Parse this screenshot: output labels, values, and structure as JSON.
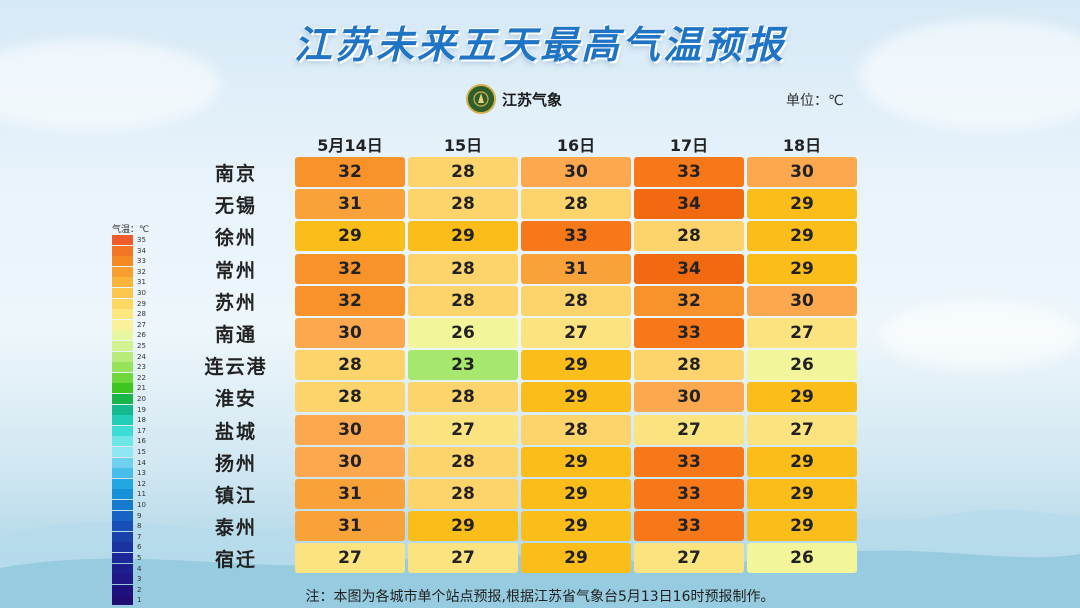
{
  "title": "江苏未来五天最高气温预报",
  "logo_text": "江苏气象",
  "unit": "单位：℃",
  "note": "注：本图为各城市单个站点预报,根据江苏省气象台5月13日16时预报制作。",
  "legend": {
    "title": "气温：℃",
    "items": [
      {
        "v": "35",
        "c": "#f05b2a"
      },
      {
        "v": "34",
        "c": "#f37524"
      },
      {
        "v": "33",
        "c": "#f58a23"
      },
      {
        "v": "32",
        "c": "#f7a030"
      },
      {
        "v": "31",
        "c": "#f9b43a"
      },
      {
        "v": "30",
        "c": "#fbc649"
      },
      {
        "v": "29",
        "c": "#fdd860"
      },
      {
        "v": "28",
        "c": "#fde57f"
      },
      {
        "v": "27",
        "c": "#fbf19a"
      },
      {
        "v": "26",
        "c": "#e9f6a0"
      },
      {
        "v": "25",
        "c": "#d3f291"
      },
      {
        "v": "24",
        "c": "#b8ec7a"
      },
      {
        "v": "23",
        "c": "#96e35c"
      },
      {
        "v": "22",
        "c": "#6fd73a"
      },
      {
        "v": "21",
        "c": "#3ec620"
      },
      {
        "v": "20",
        "c": "#17b54a"
      },
      {
        "v": "19",
        "c": "#14b98f"
      },
      {
        "v": "18",
        "c": "#1fcfb7"
      },
      {
        "v": "17",
        "c": "#3ddcd6"
      },
      {
        "v": "16",
        "c": "#6ee6e8"
      },
      {
        "v": "15",
        "c": "#8fe5f1"
      },
      {
        "v": "14",
        "c": "#6fd1ee"
      },
      {
        "v": "13",
        "c": "#47bde9"
      },
      {
        "v": "12",
        "c": "#23a7e2"
      },
      {
        "v": "11",
        "c": "#1690d8"
      },
      {
        "v": "10",
        "c": "#1579cd"
      },
      {
        "v": "9",
        "c": "#1663c3"
      },
      {
        "v": "8",
        "c": "#174eb7"
      },
      {
        "v": "7",
        "c": "#1940ab"
      },
      {
        "v": "6",
        "c": "#1b33a1"
      },
      {
        "v": "5",
        "c": "#1d2898"
      },
      {
        "v": "4",
        "c": "#1e1f8f"
      },
      {
        "v": "3",
        "c": "#1f1886"
      },
      {
        "v": "2",
        "c": "#20127d"
      },
      {
        "v": "1",
        "c": "#210d74"
      }
    ]
  },
  "chart_data": {
    "type": "table",
    "columns": [
      "5月14日",
      "15日",
      "16日",
      "17日",
      "18日"
    ],
    "rows": [
      {
        "city": "南京",
        "values": [
          32,
          28,
          30,
          33,
          30
        ]
      },
      {
        "city": "无锡",
        "values": [
          31,
          28,
          28,
          34,
          29
        ]
      },
      {
        "city": "徐州",
        "values": [
          29,
          29,
          33,
          28,
          29
        ]
      },
      {
        "city": "常州",
        "values": [
          32,
          28,
          31,
          34,
          29
        ]
      },
      {
        "city": "苏州",
        "values": [
          32,
          28,
          28,
          32,
          30
        ]
      },
      {
        "city": "南通",
        "values": [
          30,
          26,
          27,
          33,
          27
        ]
      },
      {
        "city": "连云港",
        "values": [
          28,
          23,
          29,
          28,
          26
        ]
      },
      {
        "city": "淮安",
        "values": [
          28,
          28,
          29,
          30,
          29
        ]
      },
      {
        "city": "盐城",
        "values": [
          30,
          27,
          28,
          27,
          27
        ]
      },
      {
        "city": "扬州",
        "values": [
          30,
          28,
          29,
          33,
          29
        ]
      },
      {
        "city": "镇江",
        "values": [
          31,
          28,
          29,
          33,
          29
        ]
      },
      {
        "city": "泰州",
        "values": [
          31,
          29,
          29,
          33,
          29
        ]
      },
      {
        "city": "宿迁",
        "values": [
          27,
          27,
          29,
          27,
          26
        ]
      }
    ],
    "color_scale": {
      "23": "#a6e86e",
      "26": "#f2f59a",
      "27": "#fbe480",
      "28": "#fdd36b",
      "29": "#fbbd1a",
      "30": "#fba84e",
      "31": "#f9a23a",
      "32": "#f8922a",
      "33": "#f67818",
      "34": "#f16a10"
    }
  }
}
